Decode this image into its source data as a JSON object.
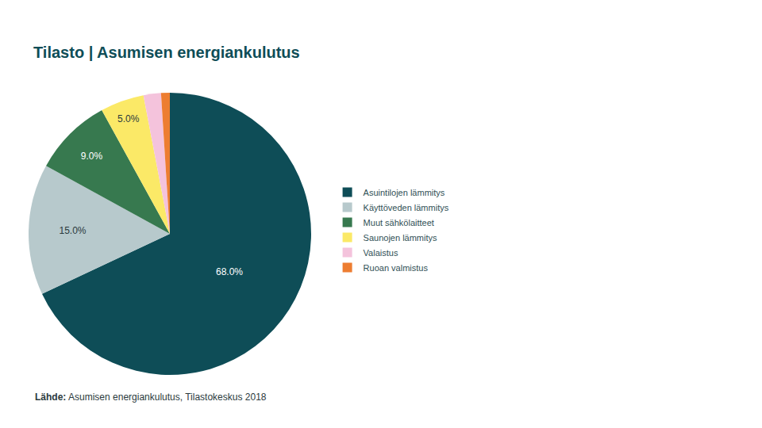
{
  "chart_data": {
    "type": "pie",
    "title": "Tilasto | Asumisen energiankulutus",
    "source_label": "Lähde:",
    "source": "Asumisen energiankulutus, Tilastokeskus 2018",
    "categories": [
      "Asuintilojen lämmitys",
      "Käyttöveden lämmitys",
      "Muut sähkölaitteet",
      "Saunojen lämmitys",
      "Valaistus",
      "Ruoan valmistus"
    ],
    "values": [
      68,
      15,
      9,
      5,
      2,
      1
    ],
    "value_labels": [
      "68.0%",
      "15.0%",
      "9.0%",
      "5.0%",
      null,
      null
    ],
    "colors": [
      "#0e4d57",
      "#b7c9cc",
      "#37794f",
      "#fbe967",
      "#f4c3dc",
      "#ed7d31"
    ],
    "data_labels": true,
    "legend": "right"
  }
}
